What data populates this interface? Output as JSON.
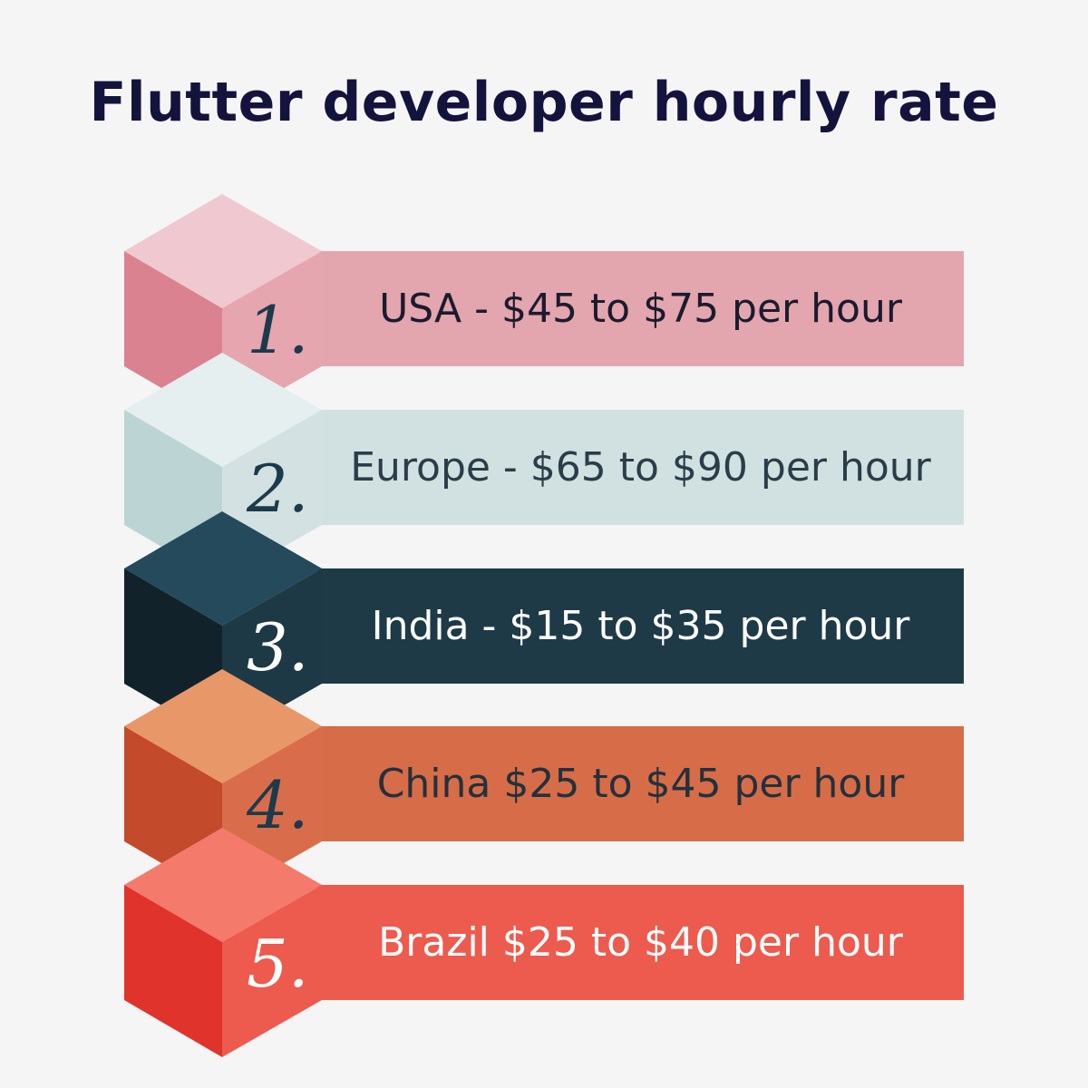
{
  "title": "Flutter developer hourly rate",
  "steps": [
    {
      "number": "1.",
      "label": "USA - $45 to $75 per hour",
      "colors": {
        "top": "#f0c9d0",
        "left": "#db8290",
        "right": "#e5a6b0",
        "band": "#e3a5ae",
        "label": "#1b1b2e",
        "number": "#1c3a4c"
      }
    },
    {
      "number": "2.",
      "label": "Europe - $65 to $90 per hour",
      "colors": {
        "top": "#e6efef",
        "left": "#bdd4d4",
        "right": "#d3e1e2",
        "band": "#d1e1e2",
        "label": "#2a3d48",
        "number": "#1c3a4c"
      }
    },
    {
      "number": "3.",
      "label": "India - $15 to $35 per hour",
      "colors": {
        "top": "#244a5c",
        "left": "#11222a",
        "right": "#1d3945",
        "band": "#1e3a47",
        "label": "#ffffff",
        "number": "#ffffff"
      }
    },
    {
      "number": "4.",
      "label": "China $25 to $45 per hour",
      "colors": {
        "top": "#e89868",
        "left": "#c44a2c",
        "right": "#d96d4b",
        "band": "#d76c48",
        "label": "#22313c",
        "number": "#1c3a4c"
      }
    },
    {
      "number": "5.",
      "label": "Brazil $25 to $40 per hour",
      "colors": {
        "top": "#f47a6c",
        "left": "#e0332b",
        "right": "#ed5a4e",
        "band": "#ec5b4d",
        "label": "#ffffff",
        "number": "#ffffff"
      }
    }
  ]
}
